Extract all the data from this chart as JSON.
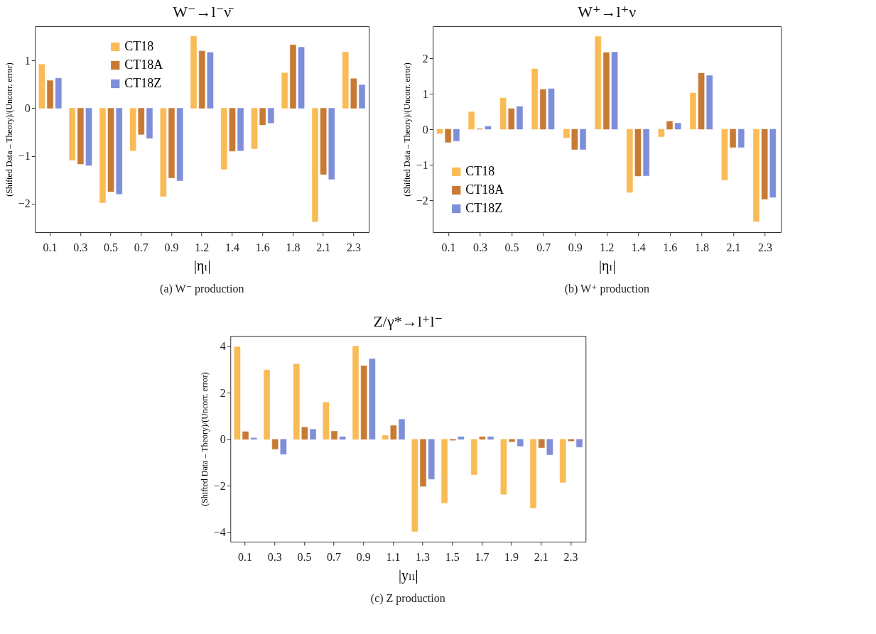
{
  "chart_data": [
    {
      "type": "bar",
      "title": "W⁻→l⁻ν̄",
      "xlabel": "|ηₗ|",
      "ylabel": "(Shifted Data – Theory)/(Uncorr. error)",
      "annotations": [
        "(a) W⁻ production"
      ],
      "legend": "top left",
      "categories": [
        "0.1",
        "0.3",
        "0.5",
        "0.7",
        "0.9",
        "1.2",
        "1.4",
        "1.6",
        "1.8",
        "2.1",
        "2.3"
      ],
      "series": [
        {
          "name": "CT18",
          "color": "#f9bb55",
          "values": [
            0.92,
            -1.09,
            -1.98,
            -0.89,
            -1.85,
            1.51,
            -1.28,
            -0.85,
            0.74,
            -2.38,
            1.18
          ]
        },
        {
          "name": "CT18A",
          "color": "#c87a34",
          "values": [
            0.58,
            -1.17,
            -1.75,
            -0.55,
            -1.46,
            1.2,
            -0.9,
            -0.35,
            1.33,
            -1.39,
            0.62
          ]
        },
        {
          "name": "CT18Z",
          "color": "#7f8ed8",
          "values": [
            0.63,
            -1.2,
            -1.8,
            -0.63,
            -1.52,
            1.17,
            -0.89,
            -0.31,
            1.28,
            -1.49,
            0.49
          ]
        }
      ],
      "ylim": [
        -2.6,
        1.72
      ],
      "yticks": [
        -2,
        -1,
        0,
        1
      ],
      "grid": false
    },
    {
      "type": "bar",
      "title": "W⁺→l⁺ν",
      "xlabel": "|ηₗ|",
      "ylabel": "(Shifted Data – Theory)/(Uncorr. error)",
      "annotations": [
        "(b) W⁺ production"
      ],
      "legend": "bottom left",
      "categories": [
        "0.1",
        "0.3",
        "0.5",
        "0.7",
        "0.9",
        "1.2",
        "1.4",
        "1.6",
        "1.8",
        "2.1",
        "2.3"
      ],
      "series": [
        {
          "name": "CT18",
          "color": "#f9bb55",
          "values": [
            -0.12,
            0.49,
            0.88,
            1.7,
            -0.24,
            2.61,
            -1.78,
            -0.21,
            1.02,
            -1.43,
            -2.6
          ]
        },
        {
          "name": "CT18A",
          "color": "#c87a34",
          "values": [
            -0.37,
            0.01,
            0.58,
            1.12,
            -0.57,
            2.16,
            -1.32,
            0.22,
            1.58,
            -0.51,
            -1.97
          ]
        },
        {
          "name": "CT18Z",
          "color": "#7f8ed8",
          "values": [
            -0.33,
            0.08,
            0.64,
            1.14,
            -0.57,
            2.17,
            -1.31,
            0.17,
            1.51,
            -0.51,
            -1.92
          ]
        }
      ],
      "ylim": [
        -2.9,
        2.9
      ],
      "yticks": [
        -2,
        -1,
        0,
        1,
        2
      ],
      "grid": false
    },
    {
      "type": "bar",
      "title": "Z/γ*→l⁺l⁻",
      "xlabel": "|yₗₗ|",
      "ylabel": "(Shifted Data – Theory)/(Uncorr. error)",
      "annotations": [
        "(c) Z production"
      ],
      "legend": "top right",
      "categories": [
        "0.1",
        "0.3",
        "0.5",
        "0.7",
        "0.9",
        "1.1",
        "1.3",
        "1.5",
        "1.7",
        "1.9",
        "2.1",
        "2.3"
      ],
      "series": [
        {
          "name": "CT18",
          "color": "#f9bb55",
          "values": [
            3.98,
            2.98,
            3.24,
            1.59,
            4.0,
            0.17,
            -3.96,
            -2.74,
            -1.52,
            -2.36,
            -2.95,
            -1.85
          ]
        },
        {
          "name": "CT18A",
          "color": "#c87a34",
          "values": [
            0.33,
            -0.42,
            0.52,
            0.35,
            3.16,
            0.59,
            -2.02,
            -0.04,
            0.11,
            -0.1,
            -0.36,
            -0.07
          ]
        },
        {
          "name": "CT18Z",
          "color": "#7f8ed8",
          "values": [
            0.06,
            -0.64,
            0.43,
            0.11,
            3.46,
            0.86,
            -1.71,
            0.11,
            0.11,
            -0.29,
            -0.66,
            -0.33
          ]
        }
      ],
      "ylim": [
        -4.4,
        4.45
      ],
      "yticks": [
        -4,
        -2,
        0,
        2,
        4
      ],
      "grid": false
    }
  ]
}
